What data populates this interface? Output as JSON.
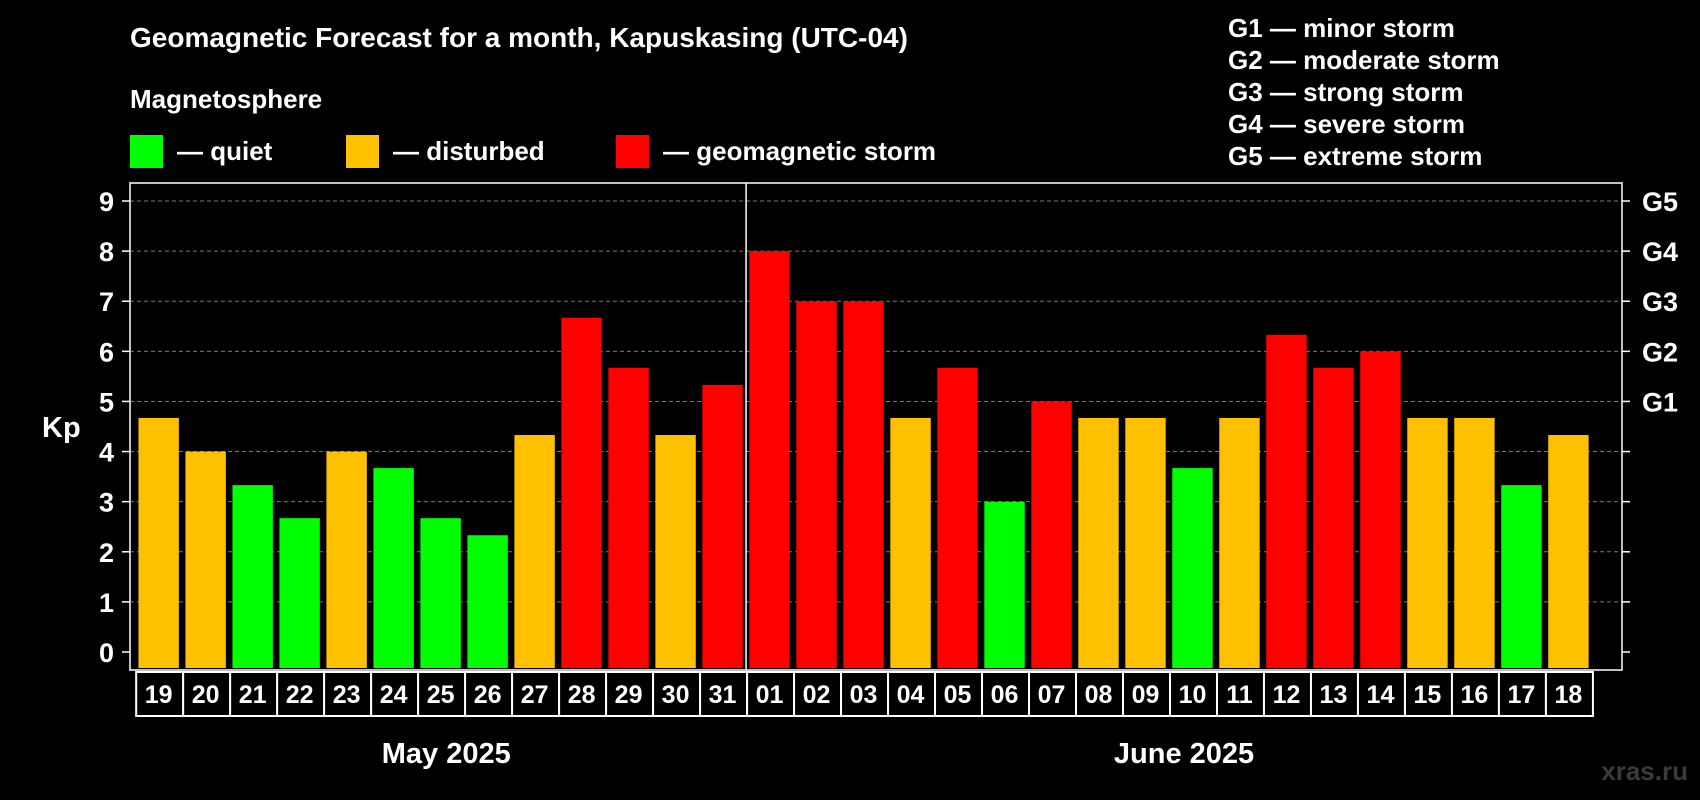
{
  "title": "Geomagnetic Forecast for a month, Kapuskasing (UTC-04)",
  "magnetosphere_label": "Magnetosphere",
  "legend": [
    {
      "color": "#00FF00",
      "label": "— quiet"
    },
    {
      "color": "#FFC000",
      "label": "— disturbed"
    },
    {
      "color": "#FF0000",
      "label": "— geomagnetic storm"
    }
  ],
  "storm_scale": [
    "G1 — minor storm",
    "G2 — moderate storm",
    "G3 — strong storm",
    "G4 — severe storm",
    "G5 — extreme storm"
  ],
  "watermark": "xras.ru",
  "chart_data": {
    "type": "bar",
    "ylabel": "Kp",
    "ylim": [
      0,
      9
    ],
    "yticks": [
      "0",
      "1",
      "2",
      "3",
      "4",
      "5",
      "6",
      "7",
      "8",
      "9"
    ],
    "right_axis_labels": [
      {
        "kp": 5,
        "label": "G1"
      },
      {
        "kp": 6,
        "label": "G2"
      },
      {
        "kp": 7,
        "label": "G3"
      },
      {
        "kp": 8,
        "label": "G4"
      },
      {
        "kp": 9,
        "label": "G5"
      }
    ],
    "months": [
      {
        "label": "May 2025",
        "days": 13
      },
      {
        "label": "June 2025",
        "days": 18
      }
    ],
    "categories": [
      "19",
      "20",
      "21",
      "22",
      "23",
      "24",
      "25",
      "26",
      "27",
      "28",
      "29",
      "30",
      "31",
      "01",
      "02",
      "03",
      "04",
      "05",
      "06",
      "07",
      "08",
      "09",
      "10",
      "11",
      "12",
      "13",
      "14",
      "15",
      "16",
      "17",
      "18"
    ],
    "values": [
      4.67,
      4.0,
      3.33,
      2.67,
      4.0,
      3.67,
      2.67,
      2.33,
      4.33,
      6.67,
      5.67,
      4.33,
      5.33,
      8.0,
      7.0,
      7.0,
      4.67,
      5.67,
      3.0,
      5.0,
      4.67,
      4.67,
      3.67,
      4.67,
      6.33,
      5.67,
      6.0,
      4.67,
      4.67,
      3.33,
      4.33
    ],
    "levels": [
      "disturbed",
      "disturbed",
      "quiet",
      "quiet",
      "disturbed",
      "quiet",
      "quiet",
      "quiet",
      "disturbed",
      "storm",
      "storm",
      "disturbed",
      "storm",
      "storm",
      "storm",
      "storm",
      "disturbed",
      "storm",
      "quiet",
      "storm",
      "disturbed",
      "disturbed",
      "quiet",
      "disturbed",
      "storm",
      "storm",
      "storm",
      "disturbed",
      "disturbed",
      "quiet",
      "disturbed"
    ],
    "level_colors": {
      "quiet": "#00FF00",
      "disturbed": "#FFC000",
      "storm": "#FF0000"
    }
  }
}
